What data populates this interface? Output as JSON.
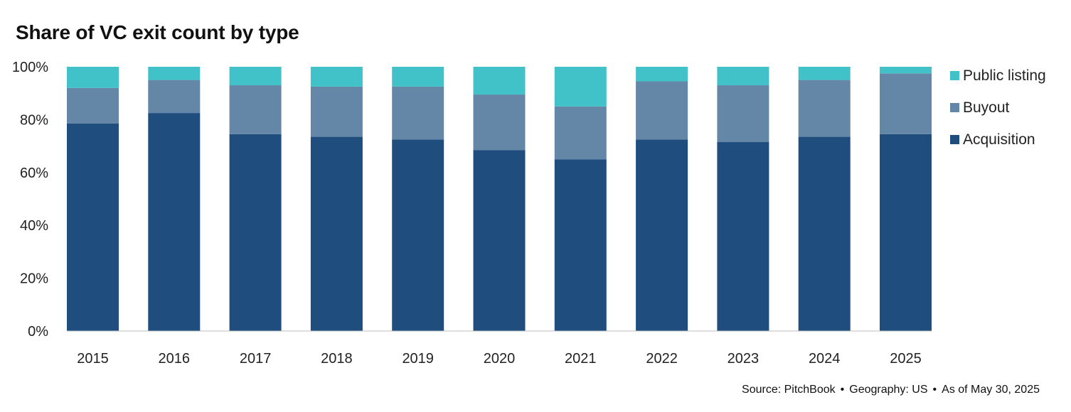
{
  "colors": {
    "acquisition": "#1f4e7e",
    "buyout": "#6587a7",
    "public_listing": "#41c2c9"
  },
  "chart_data": {
    "type": "bar",
    "stacked": true,
    "title": "Share of VC exit count by type",
    "xlabel": "",
    "ylabel": "",
    "ylim": [
      0,
      100
    ],
    "y_ticks": [
      "0%",
      "20%",
      "40%",
      "60%",
      "80%",
      "100%"
    ],
    "categories": [
      "2015",
      "2016",
      "2017",
      "2018",
      "2019",
      "2020",
      "2021",
      "2022",
      "2023",
      "2024",
      "2025"
    ],
    "series": [
      {
        "name": "Acquisition",
        "color_key": "acquisition",
        "values": [
          78.5,
          82.5,
          74.5,
          73.5,
          72.5,
          68.5,
          65,
          72.5,
          71.5,
          73.5,
          74.5
        ]
      },
      {
        "name": "Buyout",
        "color_key": "buyout",
        "values": [
          13.5,
          12.5,
          18.5,
          19,
          20,
          21,
          20,
          22,
          21.5,
          21.5,
          23
        ]
      },
      {
        "name": "Public listing",
        "color_key": "public_listing",
        "values": [
          8,
          5,
          7,
          7.5,
          7.5,
          10.5,
          15,
          5.5,
          7,
          5,
          2.5
        ]
      }
    ],
    "legend_position": "right",
    "grid": false
  },
  "legend": {
    "items": [
      {
        "label": "Public listing",
        "color_key": "public_listing"
      },
      {
        "label": "Buyout",
        "color_key": "buyout"
      },
      {
        "label": "Acquisition",
        "color_key": "acquisition"
      }
    ]
  },
  "source": {
    "source": "Source: PitchBook",
    "geography": "Geography: US",
    "as_of": "As of May 30, 2025",
    "separator": "•"
  }
}
